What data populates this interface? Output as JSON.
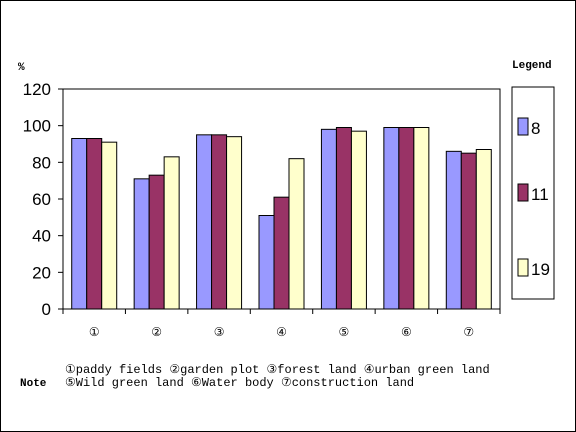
{
  "colors": {
    "s8": "#9999ff",
    "s11": "#993366",
    "s19": "#ffffcc",
    "border": "#000000"
  },
  "chart_data": {
    "type": "bar",
    "ylabel": "%",
    "ylim": [
      0,
      120
    ],
    "yticks": [
      "120",
      "100",
      "80",
      "60",
      "40",
      "20",
      "0"
    ],
    "categories": [
      "①",
      "②",
      "③",
      "④",
      "⑤",
      "⑥",
      "⑦"
    ],
    "legend_title": "Legend",
    "legend_position": "right",
    "grid": false,
    "series": [
      {
        "name": "8",
        "values": [
          93,
          71,
          95,
          51,
          98,
          99,
          86
        ]
      },
      {
        "name": "11",
        "values": [
          93,
          73,
          95,
          61,
          99,
          99,
          85
        ]
      },
      {
        "name": "19",
        "values": [
          91,
          83,
          94,
          82,
          97,
          99,
          87
        ]
      }
    ]
  },
  "note": {
    "label": "Note",
    "line1": "①paddy fields ②garden plot ③forest land ④urban green land",
    "line2": "⑤Wild  green land ⑥Water body ⑦construction land"
  }
}
